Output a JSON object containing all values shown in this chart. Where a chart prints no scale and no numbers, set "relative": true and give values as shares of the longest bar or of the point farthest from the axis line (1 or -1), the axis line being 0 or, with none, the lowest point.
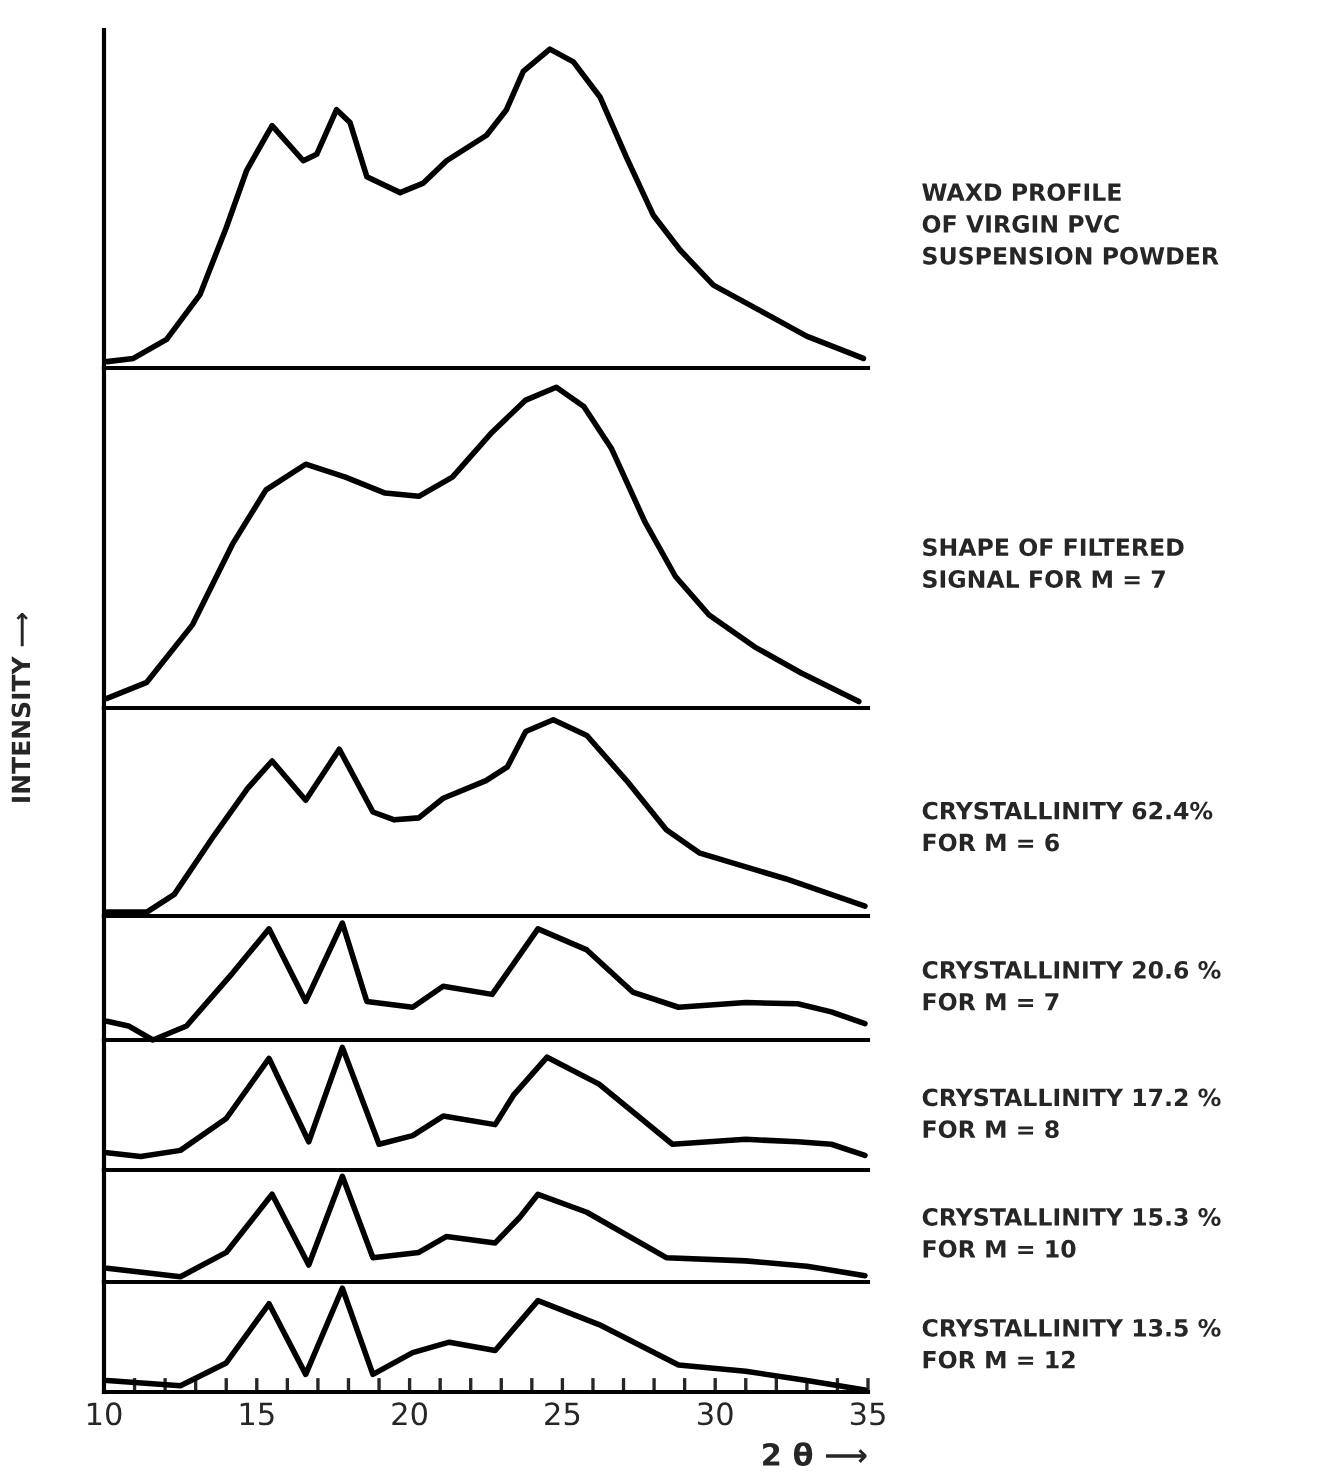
{
  "chart_data": [
    {
      "type": "line",
      "relative": true,
      "tick_labels": false,
      "xlim": [
        10,
        35
      ],
      "line_style": "solid",
      "marker": "none",
      "grid": false,
      "annotations": [
        "WAXD PROFILE\nOF VIRGIN PVC\nSUSPENSION POWDER"
      ],
      "series": [
        {
          "color": "#000000",
          "x": [
            10.1,
            10.96,
            12.05,
            13.14,
            14.0,
            14.67,
            15.5,
            16.52,
            16.96,
            17.61,
            18.05,
            18.6,
            19.69,
            20.45,
            21.21,
            22.52,
            23.17,
            23.72,
            24.59,
            25.36,
            26.23,
            27.1,
            27.97,
            28.85,
            29.94,
            31.47,
            32.99,
            34.85
          ],
          "values": [
            0.02,
            0.03,
            0.09,
            0.23,
            0.44,
            0.62,
            0.76,
            0.65,
            0.67,
            0.81,
            0.77,
            0.6,
            0.55,
            0.58,
            0.65,
            0.73,
            0.81,
            0.93,
            1.0,
            0.96,
            0.85,
            0.66,
            0.48,
            0.37,
            0.26,
            0.18,
            0.1,
            0.03
          ]
        }
      ]
    },
    {
      "type": "line",
      "relative": true,
      "tick_labels": false,
      "xlim": [
        10,
        35
      ],
      "line_style": "solid",
      "marker": "none",
      "grid": false,
      "ylabel": "INTENSITY ⟶",
      "annotations": [
        "SHAPE OF FILTERED\nSIGNAL FOR M = 7"
      ],
      "series": [
        {
          "color": "#000000",
          "x": [
            10.1,
            11.4,
            12.9,
            14.2,
            15.3,
            16.6,
            17.9,
            19.2,
            20.3,
            21.4,
            22.7,
            23.8,
            24.8,
            25.7,
            26.6,
            27.7,
            28.7,
            29.8,
            31.3,
            32.8,
            34.7
          ],
          "values": [
            0.03,
            0.08,
            0.26,
            0.51,
            0.68,
            0.76,
            0.72,
            0.67,
            0.66,
            0.72,
            0.86,
            0.96,
            1.0,
            0.94,
            0.81,
            0.58,
            0.41,
            0.29,
            0.19,
            0.11,
            0.02
          ]
        }
      ]
    },
    {
      "type": "line",
      "relative": true,
      "tick_labels": false,
      "xlim": [
        10,
        35
      ],
      "line_style": "solid",
      "marker": "none",
      "grid": false,
      "annotations": [
        "CRYSTALLINITY 62.4%\nFOR M = 6"
      ],
      "series": [
        {
          "color": "#000000",
          "x": [
            10.1,
            11.4,
            12.3,
            13.6,
            14.7,
            15.5,
            16.6,
            17.7,
            18.8,
            19.5,
            20.3,
            21.1,
            22.5,
            23.2,
            23.8,
            24.7,
            25.8,
            27.1,
            28.4,
            29.5,
            31.0,
            32.3,
            33.6,
            34.9
          ],
          "values": [
            0.02,
            0.02,
            0.11,
            0.41,
            0.65,
            0.79,
            0.59,
            0.85,
            0.53,
            0.49,
            0.5,
            0.6,
            0.69,
            0.76,
            0.94,
            1.0,
            0.92,
            0.69,
            0.44,
            0.32,
            0.25,
            0.19,
            0.12,
            0.05
          ]
        }
      ]
    },
    {
      "type": "line",
      "relative": true,
      "tick_labels": false,
      "xlim": [
        10,
        35
      ],
      "line_style": "solid",
      "marker": "none",
      "grid": false,
      "annotations": [
        "CRYSTALLINITY 20.6 %\nFOR M = 7"
      ],
      "series": [
        {
          "color": "#000000",
          "x": [
            10.1,
            10.8,
            11.6,
            12.7,
            14.2,
            15.4,
            16.6,
            17.8,
            18.6,
            20.1,
            21.1,
            22.7,
            23.4,
            24.2,
            25.8,
            27.3,
            28.8,
            31.0,
            32.7,
            33.8,
            34.9
          ],
          "values": [
            0.16,
            0.12,
            0.0,
            0.12,
            0.57,
            0.95,
            0.33,
            1.0,
            0.33,
            0.28,
            0.46,
            0.39,
            0.65,
            0.95,
            0.77,
            0.41,
            0.28,
            0.32,
            0.31,
            0.24,
            0.14
          ]
        }
      ]
    },
    {
      "type": "line",
      "relative": true,
      "tick_labels": false,
      "xlim": [
        10,
        35
      ],
      "line_style": "solid",
      "marker": "none",
      "grid": false,
      "annotations": [
        "CRYSTALLINITY 17.2 %\nFOR M = 8"
      ],
      "series": [
        {
          "color": "#000000",
          "x": [
            10.1,
            11.2,
            12.5,
            14.0,
            15.4,
            16.7,
            17.8,
            19.0,
            20.1,
            21.1,
            22.8,
            23.4,
            24.5,
            26.2,
            28.6,
            31.0,
            32.7,
            33.8,
            34.9
          ],
          "values": [
            0.14,
            0.11,
            0.16,
            0.42,
            0.91,
            0.23,
            1.0,
            0.21,
            0.28,
            0.44,
            0.37,
            0.61,
            0.92,
            0.7,
            0.21,
            0.25,
            0.23,
            0.21,
            0.12
          ]
        }
      ]
    },
    {
      "type": "line",
      "relative": true,
      "tick_labels": false,
      "xlim": [
        10,
        35
      ],
      "line_style": "solid",
      "marker": "none",
      "grid": false,
      "annotations": [
        "CRYSTALLINITY 15.3 %\nFOR M = 10"
      ],
      "series": [
        {
          "color": "#000000",
          "x": [
            10.1,
            12.5,
            14.0,
            15.5,
            16.7,
            17.8,
            18.8,
            20.3,
            21.2,
            22.8,
            23.6,
            24.2,
            25.8,
            28.4,
            31.0,
            33.0,
            34.9
          ],
          "values": [
            0.13,
            0.05,
            0.28,
            0.83,
            0.16,
            1.0,
            0.23,
            0.28,
            0.43,
            0.37,
            0.61,
            0.83,
            0.66,
            0.23,
            0.2,
            0.15,
            0.06
          ]
        }
      ]
    },
    {
      "type": "line",
      "relative": true,
      "tick_labels": "x",
      "xlim": [
        10,
        35
      ],
      "line_style": "solid",
      "marker": "none",
      "grid": false,
      "xlabel": "2 θ ⟶",
      "xticks": [
        10,
        {
          "value": 11,
          "label": null
        },
        {
          "value": 12,
          "label": null
        },
        {
          "value": 13,
          "label": null
        },
        {
          "value": 14,
          "label": null
        },
        15,
        {
          "value": 16,
          "label": null
        },
        {
          "value": 17,
          "label": null
        },
        {
          "value": 18,
          "label": null
        },
        {
          "value": 19,
          "label": null
        },
        20,
        {
          "value": 21,
          "label": null
        },
        {
          "value": 22,
          "label": null
        },
        {
          "value": 23,
          "label": null
        },
        {
          "value": 24,
          "label": null
        },
        25,
        {
          "value": 26,
          "label": null
        },
        {
          "value": 27,
          "label": null
        },
        {
          "value": 28,
          "label": null
        },
        {
          "value": 29,
          "label": null
        },
        30,
        {
          "value": 31,
          "label": null
        },
        {
          "value": 32,
          "label": null
        },
        {
          "value": 33,
          "label": null
        },
        {
          "value": 34,
          "label": null
        },
        35
      ],
      "annotations": [
        "CRYSTALLINITY 13.5 %\nFOR M = 12"
      ],
      "series": [
        {
          "color": "#000000",
          "x": [
            10.1,
            12.5,
            14.0,
            15.4,
            16.6,
            17.8,
            18.8,
            20.1,
            21.3,
            22.8,
            24.2,
            26.2,
            28.8,
            31.0,
            33.0,
            34.9
          ],
          "values": [
            0.11,
            0.06,
            0.28,
            0.85,
            0.17,
            1.0,
            0.17,
            0.38,
            0.48,
            0.4,
            0.88,
            0.65,
            0.26,
            0.2,
            0.11,
            0.02
          ]
        }
      ]
    }
  ]
}
